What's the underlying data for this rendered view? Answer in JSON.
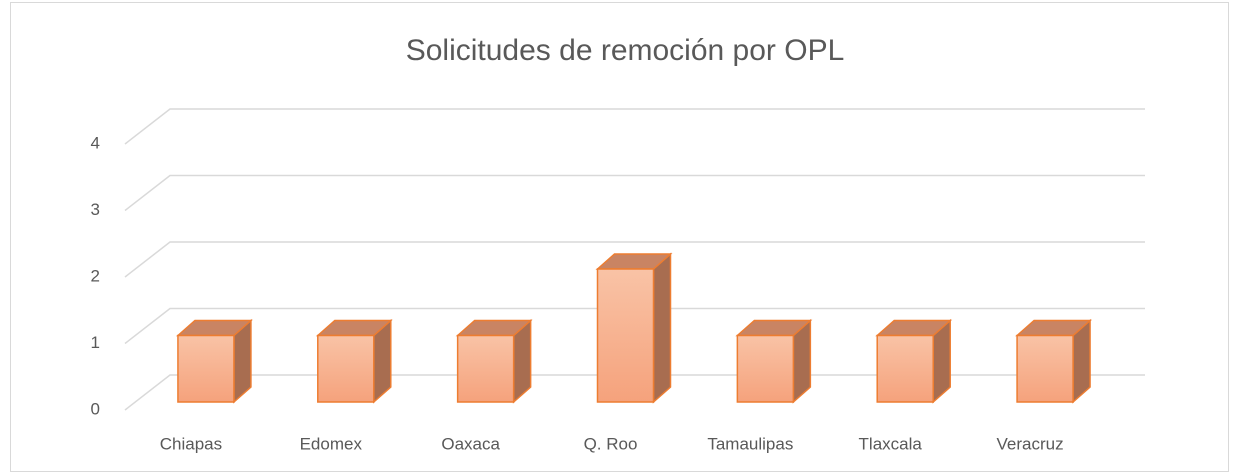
{
  "chart_data": {
    "type": "bar3d",
    "title": "Solicitudes de remoción por OPL",
    "categories": [
      "Chiapas",
      "Edomex",
      "Oaxaca",
      "Q. Roo",
      "Tamaulipas",
      "Tlaxcala",
      "Veracruz"
    ],
    "values": [
      1,
      1,
      1,
      2,
      1,
      1,
      1
    ],
    "color": "#f4b183",
    "ylim": [
      0,
      4
    ],
    "yticks": [
      0,
      1,
      2,
      3,
      4
    ],
    "grid": true
  }
}
